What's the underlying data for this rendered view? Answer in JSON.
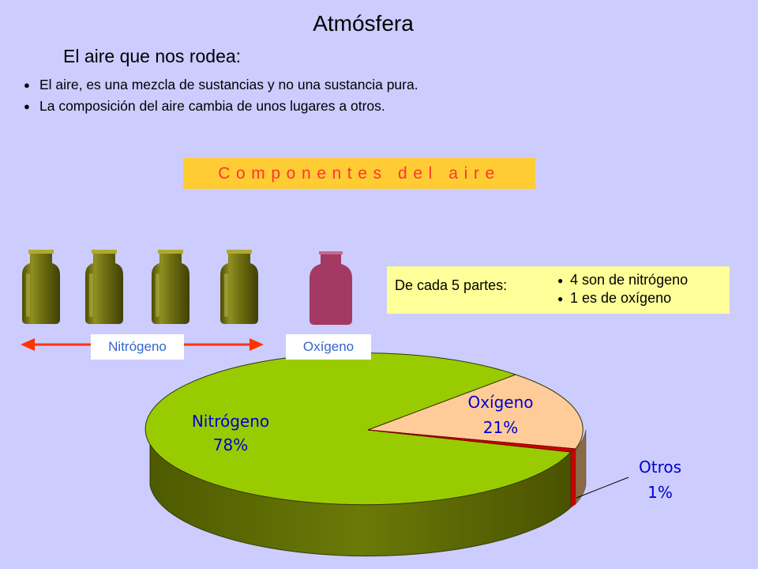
{
  "slide": {
    "title": "Atmósfera",
    "subtitle": "El aire que nos rodea:",
    "bullets": [
      "El aire, es una mezcla de sustancias y no una sustancia pura.",
      "La composición del aire cambia de unos lugares a otros."
    ],
    "banner": "Componentes del aire"
  },
  "bottles": {
    "nitrogen_count": 4,
    "oxygen_count": 1,
    "nitrogen_color": "#6b6b10",
    "oxygen_color": "#a33a63",
    "nitrogen_label": "Nitrógeno",
    "oxygen_label": "Oxígeno"
  },
  "info": {
    "lead": "De cada 5 partes:",
    "items": [
      "4 son de nitrógeno",
      "1 es de oxígeno"
    ]
  },
  "chart_data": {
    "type": "pie",
    "slices": [
      {
        "name": "Nitrógeno",
        "value": 78,
        "label": "78%",
        "color": "#99cc00"
      },
      {
        "name": "Oxígeno",
        "value": 21,
        "label": "21%",
        "color": "#ffcc99"
      },
      {
        "name": "Otros",
        "value": 1,
        "label": "1%",
        "color": "#cc0000"
      }
    ],
    "style": "3d",
    "label_color": "#0000cc"
  }
}
